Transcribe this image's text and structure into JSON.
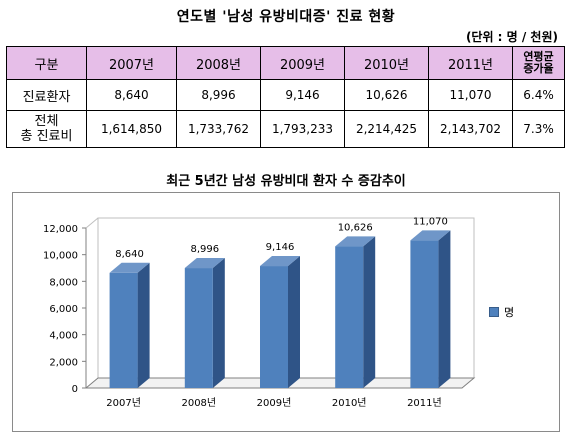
{
  "title": "연도별 '남성 유방비대증' 진료 현황",
  "unit": "(단위 : 명 / 천원)",
  "table": {
    "headers": [
      "구분",
      "2007년",
      "2008년",
      "2009년",
      "2010년",
      "2011년",
      "연평균\n증가율"
    ],
    "rows": [
      [
        "진료환자",
        "8,640",
        "8,996",
        "9,146",
        "10,626",
        "11,070",
        "6.4%"
      ],
      [
        "전체\n총 진료비",
        "1,614,850",
        "1,733,762",
        "1,793,233",
        "2,214,425",
        "2,143,702",
        "7.3%"
      ]
    ]
  },
  "chart_title": "최근 5년간 남성 유방비대 환자 수 증감추이",
  "chart_data": {
    "type": "bar",
    "title": "최근 5년간 남성 유방비대 환자 수 증감추이",
    "categories": [
      "2007년",
      "2008년",
      "2009년",
      "2010년",
      "2011년"
    ],
    "series": [
      {
        "name": "명",
        "values": [
          8640,
          8996,
          9146,
          10626,
          11070
        ]
      }
    ],
    "data_labels": [
      "8,640",
      "8,996",
      "9,146",
      "10,626",
      "11,070"
    ],
    "ylim": [
      0,
      12000
    ],
    "yticks": [
      0,
      2000,
      4000,
      6000,
      8000,
      10000,
      12000
    ],
    "ytick_labels": [
      "0",
      "2,000",
      "4,000",
      "6,000",
      "8,000",
      "10,000",
      "12,000"
    ],
    "legend_position": "right",
    "grid": false,
    "colors": {
      "bar_front": "#4f81bd",
      "bar_side": "#2f5487",
      "bar_top": "#6f96c8"
    }
  }
}
